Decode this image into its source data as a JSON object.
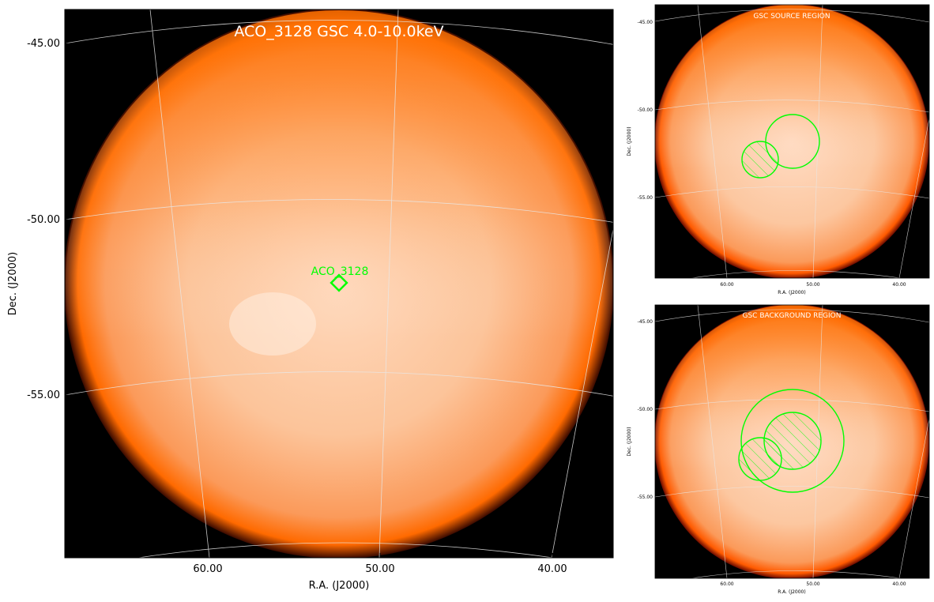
{
  "main": {
    "title": "ACO_3128 GSC 4.0-10.0keV",
    "xlabel": "R.A. (J2000)",
    "ylabel": "Dec. (J2000)",
    "x_ticks": [
      "60.00",
      "50.00",
      "40.00"
    ],
    "y_ticks": [
      "-45.00",
      "-50.00",
      "-55.00"
    ],
    "source_label": "ACO_3128",
    "marker_color": "#00ff00"
  },
  "source_panel": {
    "title": "GSC SOURCE REGION",
    "xlabel": "R.A. (J2000)",
    "ylabel": "Dec. (J2000)",
    "x_ticks": [
      "60.00",
      "50.00",
      "40.00"
    ],
    "y_ticks": [
      "-45.00",
      "-50.00",
      "-55.00"
    ]
  },
  "background_panel": {
    "title": "GSC BACKGROUND REGION",
    "xlabel": "R.A. (J2000)",
    "ylabel": "Dec. (J2000)",
    "x_ticks": [
      "60.00",
      "50.00",
      "40.00"
    ],
    "y_ticks": [
      "-45.00",
      "-50.00",
      "-55.00"
    ]
  },
  "colors": {
    "sky_edge": "#ff6a00",
    "sky_center": "#ffd9bd",
    "background": "#000000",
    "region": "#00ff00",
    "grid": "#e8e8e8"
  }
}
